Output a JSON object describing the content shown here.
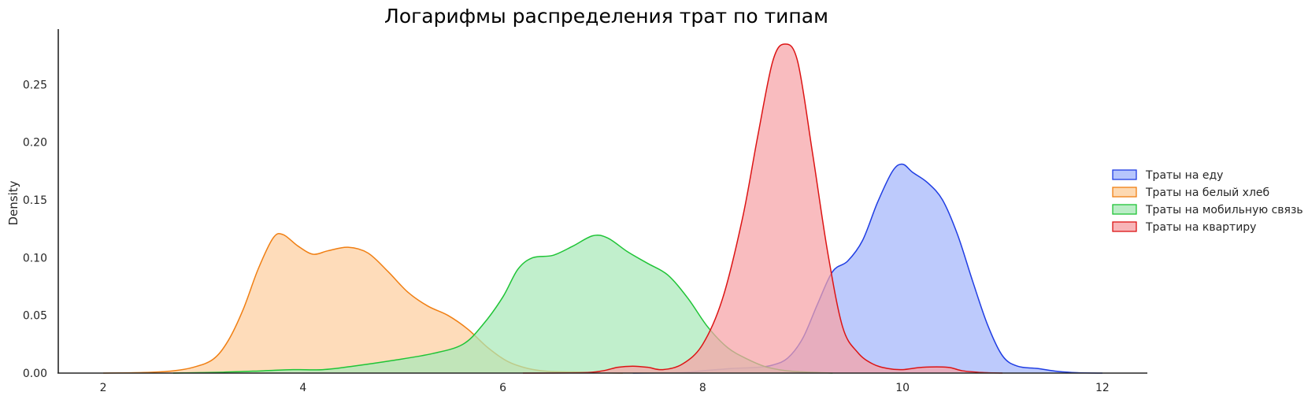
{
  "chart_data": {
    "type": "area",
    "title": "Логарифмы распределения трат по типам",
    "xlabel": "",
    "ylabel": "Density",
    "xlim": [
      1.55,
      12.45
    ],
    "ylim": [
      0,
      0.298
    ],
    "x_ticks": [
      2,
      4,
      6,
      8,
      10,
      12
    ],
    "y_ticks": [
      0.0,
      0.05,
      0.1,
      0.15,
      0.2,
      0.25
    ],
    "grid": false,
    "legend_position": "right",
    "series": [
      {
        "name": "Траты на еду",
        "color": "#1f3de3",
        "fill": "#a4b6fb",
        "points": [
          [
            7.3,
            0
          ],
          [
            7.8,
            0.0005
          ],
          [
            8.0,
            0.002
          ],
          [
            8.3,
            0.004
          ],
          [
            8.55,
            0.005
          ],
          [
            8.7,
            0.007
          ],
          [
            8.85,
            0.013
          ],
          [
            9.0,
            0.03
          ],
          [
            9.15,
            0.06
          ],
          [
            9.3,
            0.088
          ],
          [
            9.45,
            0.097
          ],
          [
            9.6,
            0.115
          ],
          [
            9.75,
            0.148
          ],
          [
            9.9,
            0.175
          ],
          [
            10.0,
            0.181
          ],
          [
            10.1,
            0.174
          ],
          [
            10.25,
            0.165
          ],
          [
            10.4,
            0.15
          ],
          [
            10.55,
            0.12
          ],
          [
            10.7,
            0.08
          ],
          [
            10.85,
            0.042
          ],
          [
            11.0,
            0.015
          ],
          [
            11.15,
            0.006
          ],
          [
            11.35,
            0.004
          ],
          [
            11.55,
            0.0015
          ],
          [
            11.75,
            0.0003
          ],
          [
            12.0,
            0
          ]
        ]
      },
      {
        "name": "Траты на белый хлеб",
        "color": "#f07f13",
        "fill": "#fdcf9f",
        "points": [
          [
            2.0,
            0
          ],
          [
            2.4,
            0.0005
          ],
          [
            2.7,
            0.002
          ],
          [
            2.9,
            0.005
          ],
          [
            3.1,
            0.012
          ],
          [
            3.25,
            0.028
          ],
          [
            3.4,
            0.055
          ],
          [
            3.55,
            0.09
          ],
          [
            3.7,
            0.117
          ],
          [
            3.8,
            0.12
          ],
          [
            3.95,
            0.11
          ],
          [
            4.1,
            0.103
          ],
          [
            4.25,
            0.106
          ],
          [
            4.45,
            0.109
          ],
          [
            4.65,
            0.104
          ],
          [
            4.85,
            0.088
          ],
          [
            5.05,
            0.07
          ],
          [
            5.25,
            0.058
          ],
          [
            5.45,
            0.05
          ],
          [
            5.65,
            0.038
          ],
          [
            5.85,
            0.022
          ],
          [
            6.05,
            0.01
          ],
          [
            6.25,
            0.004
          ],
          [
            6.45,
            0.0015
          ],
          [
            6.7,
            0.001
          ],
          [
            6.95,
            0.0003
          ],
          [
            7.2,
            0
          ]
        ]
      },
      {
        "name": "Траты на мобильную связь",
        "color": "#1fc436",
        "fill": "#a9e9b8",
        "points": [
          [
            2.7,
            0
          ],
          [
            3.2,
            0.0008
          ],
          [
            3.6,
            0.002
          ],
          [
            3.9,
            0.003
          ],
          [
            4.2,
            0.003
          ],
          [
            4.5,
            0.006
          ],
          [
            4.9,
            0.011
          ],
          [
            5.3,
            0.017
          ],
          [
            5.6,
            0.025
          ],
          [
            5.8,
            0.042
          ],
          [
            6.0,
            0.066
          ],
          [
            6.15,
            0.09
          ],
          [
            6.3,
            0.1
          ],
          [
            6.5,
            0.102
          ],
          [
            6.7,
            0.11
          ],
          [
            6.9,
            0.119
          ],
          [
            7.05,
            0.117
          ],
          [
            7.25,
            0.105
          ],
          [
            7.45,
            0.095
          ],
          [
            7.65,
            0.085
          ],
          [
            7.85,
            0.065
          ],
          [
            8.05,
            0.04
          ],
          [
            8.25,
            0.022
          ],
          [
            8.45,
            0.012
          ],
          [
            8.65,
            0.005
          ],
          [
            8.9,
            0.0015
          ],
          [
            9.3,
            0
          ]
        ]
      },
      {
        "name": "Траты на квартиру",
        "color": "#dc1414",
        "fill": "#f6a2a6",
        "points": [
          [
            6.2,
            0
          ],
          [
            6.8,
            0.0003
          ],
          [
            7.0,
            0.002
          ],
          [
            7.15,
            0.005
          ],
          [
            7.3,
            0.006
          ],
          [
            7.45,
            0.005
          ],
          [
            7.6,
            0.003
          ],
          [
            7.8,
            0.008
          ],
          [
            8.0,
            0.025
          ],
          [
            8.2,
            0.065
          ],
          [
            8.4,
            0.135
          ],
          [
            8.55,
            0.205
          ],
          [
            8.7,
            0.27
          ],
          [
            8.82,
            0.285
          ],
          [
            8.95,
            0.27
          ],
          [
            9.1,
            0.19
          ],
          [
            9.25,
            0.105
          ],
          [
            9.4,
            0.04
          ],
          [
            9.55,
            0.018
          ],
          [
            9.7,
            0.008
          ],
          [
            9.85,
            0.004
          ],
          [
            10.0,
            0.003
          ],
          [
            10.2,
            0.005
          ],
          [
            10.45,
            0.005
          ],
          [
            10.6,
            0.002
          ],
          [
            10.8,
            0.0005
          ],
          [
            11.0,
            0
          ]
        ]
      }
    ]
  }
}
